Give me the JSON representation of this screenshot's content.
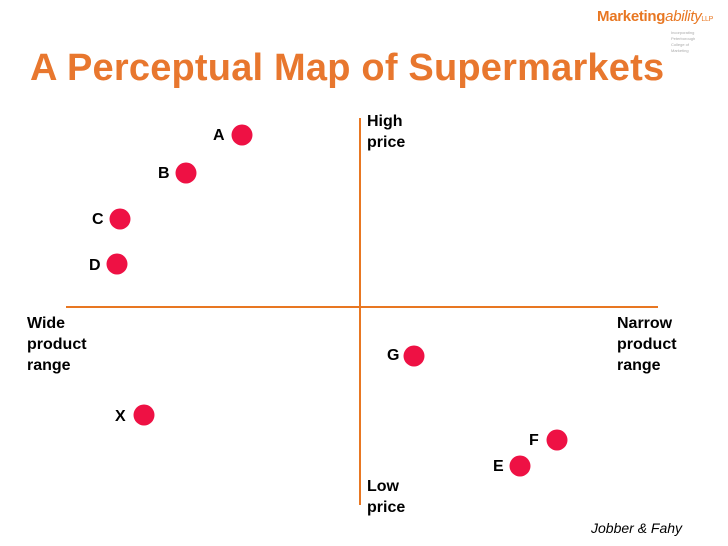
{
  "logo": {
    "brand": "Marketing",
    "brand_accent": "ability",
    "suffix": "LLP",
    "lines": [
      "Incorporating",
      "Peterborough",
      "College of",
      "Marketing"
    ]
  },
  "title": "A Perceptual Map of Supermarkets",
  "axes": {
    "top": [
      "High",
      "price"
    ],
    "bottom": [
      "Low",
      "price"
    ],
    "left": [
      "Wide",
      "product",
      "range"
    ],
    "right": [
      "Narrow",
      "product",
      "range"
    ]
  },
  "points": [
    {
      "label": "A"
    },
    {
      "label": "B"
    },
    {
      "label": "C"
    },
    {
      "label": "D"
    },
    {
      "label": "G"
    },
    {
      "label": "X"
    },
    {
      "label": "F"
    },
    {
      "label": "E"
    }
  ],
  "credit": "Jobber & Fahy",
  "colors": {
    "title": "#e8772e",
    "axis": "#e87722",
    "dot": "#ee1144"
  }
}
